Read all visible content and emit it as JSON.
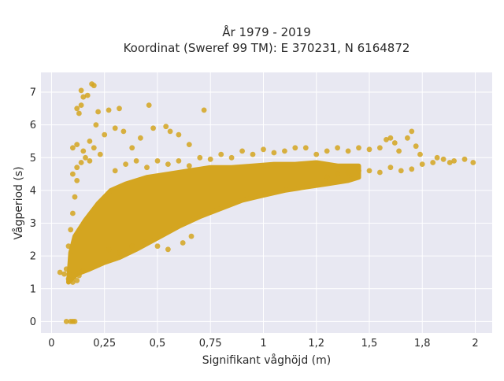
{
  "chart_data": {
    "type": "scatter",
    "title_lines": [
      "År 1979 - 2019",
      "Koordinat (Sweref 99 TM): E 370231, N 6164872"
    ],
    "xlabel": "Signifikant våghöjd (m)",
    "ylabel": "Vågperiod (s)",
    "xlim": [
      -0.05,
      2.08
    ],
    "ylim": [
      -0.35,
      7.6
    ],
    "xticks": [
      0,
      0.25,
      0.5,
      0.75,
      1,
      1.25,
      1.5,
      1.75,
      2
    ],
    "xtick_labels": [
      "0",
      "0,25",
      "0,5",
      "0,75",
      "1",
      "1,2",
      "1,5",
      "1,8",
      "2"
    ],
    "yticks": [
      0,
      1,
      2,
      3,
      4,
      5,
      6,
      7
    ],
    "ytick_labels": [
      "0",
      "1",
      "2",
      "3",
      "4",
      "5",
      "6",
      "7"
    ],
    "grid": true,
    "background_color": "#e8e8f2",
    "marker_color": "#d4a520",
    "series": [
      {
        "values": [
          [
            0.07,
            0.0
          ],
          [
            0.09,
            0.0
          ],
          [
            0.1,
            0.0
          ],
          [
            0.11,
            0.0
          ],
          [
            0.04,
            1.5
          ],
          [
            0.06,
            1.45
          ],
          [
            0.07,
            1.6
          ],
          [
            0.08,
            1.3
          ],
          [
            0.1,
            1.2
          ],
          [
            0.12,
            1.25
          ],
          [
            0.13,
            1.4
          ],
          [
            0.15,
            1.55
          ],
          [
            0.08,
            2.3
          ],
          [
            0.09,
            2.8
          ],
          [
            0.1,
            3.3
          ],
          [
            0.11,
            3.8
          ],
          [
            0.12,
            4.3
          ],
          [
            0.1,
            4.5
          ],
          [
            0.12,
            4.7
          ],
          [
            0.14,
            4.85
          ],
          [
            0.16,
            5.0
          ],
          [
            0.18,
            4.9
          ],
          [
            0.1,
            5.3
          ],
          [
            0.12,
            5.4
          ],
          [
            0.15,
            5.2
          ],
          [
            0.18,
            5.5
          ],
          [
            0.2,
            5.3
          ],
          [
            0.23,
            5.1
          ],
          [
            0.12,
            6.5
          ],
          [
            0.14,
            6.6
          ],
          [
            0.13,
            6.35
          ],
          [
            0.14,
            7.05
          ],
          [
            0.15,
            6.85
          ],
          [
            0.19,
            7.25
          ],
          [
            0.2,
            7.2
          ],
          [
            0.17,
            6.9
          ],
          [
            0.21,
            6.0
          ],
          [
            0.22,
            6.4
          ],
          [
            0.25,
            5.7
          ],
          [
            0.27,
            6.45
          ],
          [
            0.3,
            5.9
          ],
          [
            0.32,
            6.5
          ],
          [
            0.34,
            5.8
          ],
          [
            0.38,
            5.3
          ],
          [
            0.42,
            5.6
          ],
          [
            0.46,
            6.6
          ],
          [
            0.48,
            5.9
          ],
          [
            0.54,
            5.95
          ],
          [
            0.56,
            5.8
          ],
          [
            0.6,
            5.7
          ],
          [
            0.65,
            5.4
          ],
          [
            0.72,
            6.45
          ],
          [
            0.27,
            2.2
          ],
          [
            0.32,
            2.1
          ],
          [
            0.38,
            2.3
          ],
          [
            0.44,
            2.45
          ],
          [
            0.5,
            2.3
          ],
          [
            0.55,
            2.2
          ],
          [
            0.62,
            2.4
          ],
          [
            0.66,
            2.6
          ],
          [
            0.3,
            4.6
          ],
          [
            0.35,
            4.8
          ],
          [
            0.4,
            4.9
          ],
          [
            0.45,
            4.7
          ],
          [
            0.5,
            4.9
          ],
          [
            0.55,
            4.8
          ],
          [
            0.6,
            4.9
          ],
          [
            0.65,
            4.75
          ],
          [
            0.7,
            5.0
          ],
          [
            0.75,
            4.95
          ],
          [
            0.8,
            5.1
          ],
          [
            0.85,
            5.0
          ],
          [
            0.9,
            5.2
          ],
          [
            0.95,
            5.1
          ],
          [
            1.0,
            5.25
          ],
          [
            1.05,
            5.15
          ],
          [
            1.1,
            5.2
          ],
          [
            1.15,
            5.3
          ],
          [
            1.2,
            5.3
          ],
          [
            1.25,
            5.1
          ],
          [
            1.3,
            5.2
          ],
          [
            1.35,
            5.3
          ],
          [
            1.4,
            5.2
          ],
          [
            1.45,
            5.3
          ],
          [
            1.5,
            5.25
          ],
          [
            1.55,
            5.3
          ],
          [
            1.58,
            5.55
          ],
          [
            1.6,
            5.6
          ],
          [
            1.62,
            5.45
          ],
          [
            1.64,
            5.2
          ],
          [
            1.68,
            5.6
          ],
          [
            1.7,
            5.8
          ],
          [
            1.72,
            5.35
          ],
          [
            1.74,
            5.1
          ],
          [
            1.3,
            4.4
          ],
          [
            1.35,
            4.5
          ],
          [
            1.4,
            4.55
          ],
          [
            1.45,
            4.6
          ],
          [
            1.5,
            4.6
          ],
          [
            1.55,
            4.55
          ],
          [
            1.6,
            4.7
          ],
          [
            1.65,
            4.6
          ],
          [
            1.7,
            4.65
          ],
          [
            1.75,
            4.8
          ],
          [
            1.8,
            4.85
          ],
          [
            1.85,
            4.95
          ],
          [
            1.88,
            4.85
          ],
          [
            1.9,
            4.9
          ],
          [
            1.95,
            4.95
          ],
          [
            1.99,
            4.85
          ],
          [
            1.82,
            5.0
          ]
        ]
      }
    ]
  }
}
